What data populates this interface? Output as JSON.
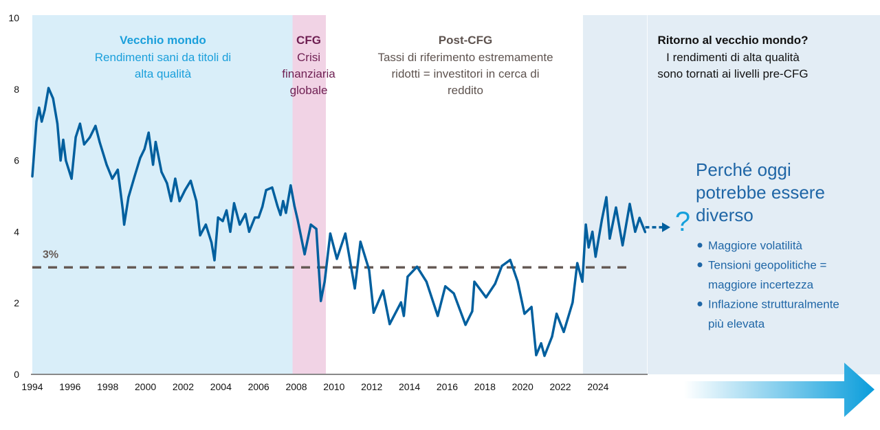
{
  "chart_data": {
    "type": "line",
    "title": "",
    "xlabel": "",
    "ylabel": "",
    "xlim": [
      1994,
      2026.6
    ],
    "ylim": [
      0,
      10
    ],
    "grid": false,
    "x_ticks": [
      "1994",
      "1996",
      "1998",
      "2000",
      "2002",
      "2004",
      "2006",
      "2008",
      "2010",
      "2012",
      "2014",
      "2016",
      "2018",
      "2020",
      "2022",
      "2024"
    ],
    "y_ticks": [
      "0",
      "2",
      "4",
      "6",
      "8",
      "10"
    ],
    "reference_line": {
      "value": 3,
      "label": "3%",
      "color": "#655a55"
    },
    "series": [
      {
        "color": "#005f9e",
        "points": [
          [
            1994.0,
            5.55
          ],
          [
            1994.22,
            7.09
          ],
          [
            1994.36,
            7.48
          ],
          [
            1994.5,
            7.09
          ],
          [
            1994.66,
            7.42
          ],
          [
            1994.86,
            8.03
          ],
          [
            1995.1,
            7.74
          ],
          [
            1995.33,
            7.03
          ],
          [
            1995.5,
            6.0
          ],
          [
            1995.64,
            6.58
          ],
          [
            1995.78,
            6.0
          ],
          [
            1996.08,
            5.49
          ],
          [
            1996.3,
            6.65
          ],
          [
            1996.53,
            7.03
          ],
          [
            1996.75,
            6.45
          ],
          [
            1997.05,
            6.65
          ],
          [
            1997.35,
            6.97
          ],
          [
            1997.57,
            6.52
          ],
          [
            1997.94,
            5.88
          ],
          [
            1998.24,
            5.49
          ],
          [
            1998.53,
            5.74
          ],
          [
            1998.8,
            4.6
          ],
          [
            1998.87,
            4.2
          ],
          [
            1999.1,
            4.97
          ],
          [
            1999.42,
            5.55
          ],
          [
            1999.72,
            6.07
          ],
          [
            1999.95,
            6.32
          ],
          [
            2000.17,
            6.78
          ],
          [
            2000.4,
            5.88
          ],
          [
            2000.54,
            6.52
          ],
          [
            2000.85,
            5.68
          ],
          [
            2001.14,
            5.36
          ],
          [
            2001.36,
            4.86
          ],
          [
            2001.58,
            5.49
          ],
          [
            2001.81,
            4.86
          ],
          [
            2002.1,
            5.17
          ],
          [
            2002.4,
            5.43
          ],
          [
            2002.7,
            4.86
          ],
          [
            2002.9,
            3.9
          ],
          [
            2003.2,
            4.2
          ],
          [
            2003.5,
            3.7
          ],
          [
            2003.66,
            3.2
          ],
          [
            2003.85,
            4.4
          ],
          [
            2004.1,
            4.3
          ],
          [
            2004.3,
            4.6
          ],
          [
            2004.5,
            4.0
          ],
          [
            2004.7,
            4.8
          ],
          [
            2005.0,
            4.2
          ],
          [
            2005.3,
            4.5
          ],
          [
            2005.5,
            4.0
          ],
          [
            2005.8,
            4.4
          ],
          [
            2006.0,
            4.4
          ],
          [
            2006.2,
            4.7
          ],
          [
            2006.4,
            5.17
          ],
          [
            2006.72,
            5.24
          ],
          [
            2007.0,
            4.72
          ],
          [
            2007.16,
            4.47
          ],
          [
            2007.3,
            4.86
          ],
          [
            2007.45,
            4.53
          ],
          [
            2007.7,
            5.3
          ],
          [
            2007.9,
            4.72
          ],
          [
            2008.07,
            4.34
          ],
          [
            2008.44,
            3.37
          ],
          [
            2008.77,
            4.2
          ],
          [
            2009.06,
            4.08
          ],
          [
            2009.3,
            2.06
          ],
          [
            2009.5,
            2.6
          ],
          [
            2009.8,
            3.95
          ],
          [
            2010.15,
            3.24
          ],
          [
            2010.6,
            3.95
          ],
          [
            2011.1,
            2.41
          ],
          [
            2011.4,
            3.72
          ],
          [
            2011.86,
            2.93
          ],
          [
            2012.1,
            1.73
          ],
          [
            2012.6,
            2.35
          ],
          [
            2012.95,
            1.41
          ],
          [
            2013.55,
            2.02
          ],
          [
            2013.7,
            1.64
          ],
          [
            2013.9,
            2.74
          ],
          [
            2014.4,
            3.02
          ],
          [
            2014.9,
            2.6
          ],
          [
            2015.5,
            1.64
          ],
          [
            2015.9,
            2.47
          ],
          [
            2016.35,
            2.27
          ],
          [
            2016.97,
            1.39
          ],
          [
            2017.33,
            1.77
          ],
          [
            2017.44,
            2.6
          ],
          [
            2018.06,
            2.16
          ],
          [
            2018.54,
            2.54
          ],
          [
            2018.9,
            3.04
          ],
          [
            2019.34,
            3.21
          ],
          [
            2019.74,
            2.6
          ],
          [
            2020.1,
            1.7
          ],
          [
            2020.47,
            1.89
          ],
          [
            2020.72,
            0.54
          ],
          [
            2020.98,
            0.87
          ],
          [
            2021.16,
            0.52
          ],
          [
            2021.56,
            1.06
          ],
          [
            2021.8,
            1.7
          ],
          [
            2022.18,
            1.19
          ],
          [
            2022.65,
            2.02
          ],
          [
            2022.9,
            3.12
          ],
          [
            2023.17,
            2.6
          ],
          [
            2023.35,
            4.2
          ],
          [
            2023.5,
            3.56
          ],
          [
            2023.7,
            4.0
          ],
          [
            2023.87,
            3.3
          ],
          [
            2024.2,
            4.33
          ],
          [
            2024.44,
            4.97
          ],
          [
            2024.62,
            3.81
          ],
          [
            2024.95,
            4.68
          ],
          [
            2025.3,
            3.62
          ],
          [
            2025.68,
            4.78
          ],
          [
            2025.97,
            4.0
          ],
          [
            2026.2,
            4.39
          ],
          [
            2026.5,
            3.99
          ]
        ]
      }
    ],
    "regions": [
      {
        "from": 1994,
        "to": 2007.8,
        "color": "#d9eef9",
        "title": "Vecchio mondo",
        "title_color": "#1a9fdb",
        "lines": [
          "Rendimenti sani da titoli di",
          "alta qualità"
        ],
        "text_color": "#1a9fdb"
      },
      {
        "from": 2007.8,
        "to": 2009.57,
        "color": "#f1d3e5",
        "title": "CFG",
        "title_color": "#6e1f52",
        "lines": [
          "Crisi",
          "finanziaria",
          "globale"
        ],
        "text_color": "#6e1f52"
      },
      {
        "from": 2009.57,
        "to": 2023.2,
        "color": "#ffffff",
        "title": "Post-CFG",
        "title_color": "#5e534f",
        "lines": [
          "Tassi di riferimento estremamente",
          "ridotti = investitori in cerca di",
          "reddito"
        ],
        "text_color": "#5e534f"
      },
      {
        "from": 2023.2,
        "to": 2026.6,
        "color": "#e3edf5",
        "title": "Ritorno al vecchio mondo?",
        "title_color": "#111111",
        "lines": [
          "I rendimenti di alta qualità",
          "sono tornati ai livelli pre-CFG"
        ],
        "text_color": "#111111"
      }
    ],
    "annotation": {
      "question_mark": "?",
      "heading_lines": [
        "Perché oggi",
        "potrebbe essere",
        "diverso"
      ],
      "bullets": [
        [
          "Maggiore volatilità"
        ],
        [
          "Tensioni geopolitiche =",
          "maggiore incertezza"
        ],
        [
          "Inflazione strutturalmente",
          "più elevata"
        ]
      ],
      "color": "#1f66a6",
      "question_color": "#14a0dc",
      "arrow_icon": "gradient-right-arrow-icon"
    }
  }
}
